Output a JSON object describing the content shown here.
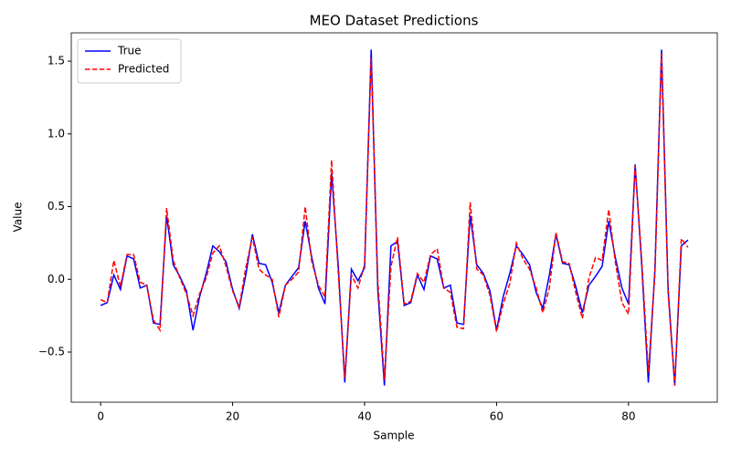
{
  "chart_data": {
    "type": "line",
    "title": "MEO Dataset Predictions",
    "x_label": "Sample",
    "y_label": "Value",
    "x": [
      0,
      1,
      2,
      3,
      4,
      5,
      6,
      7,
      8,
      9,
      10,
      11,
      12,
      13,
      14,
      15,
      16,
      17,
      18,
      19,
      20,
      21,
      22,
      23,
      24,
      25,
      26,
      27,
      28,
      29,
      30,
      31,
      32,
      33,
      34,
      35,
      36,
      37,
      38,
      39,
      40,
      41,
      42,
      43,
      44,
      45,
      46,
      47,
      48,
      49,
      50,
      51,
      52,
      53,
      54,
      55,
      56,
      57,
      58,
      59,
      60,
      61,
      62,
      63,
      64,
      65,
      66,
      67,
      68,
      69,
      70,
      71,
      72,
      73,
      74,
      75,
      76,
      77,
      78,
      79,
      80,
      81,
      82,
      83,
      84,
      85,
      86,
      87,
      88,
      89
    ],
    "series": [
      {
        "name": "True",
        "color": "#0000ff",
        "linestyle": "solid",
        "values": [
          -0.18,
          -0.16,
          0.03,
          -0.07,
          0.16,
          0.14,
          -0.06,
          -0.04,
          -0.3,
          -0.31,
          0.44,
          0.1,
          0.02,
          -0.08,
          -0.35,
          -0.12,
          0.04,
          0.23,
          0.19,
          0.12,
          -0.07,
          -0.2,
          0.03,
          0.31,
          0.11,
          0.1,
          -0.02,
          -0.23,
          -0.04,
          0.02,
          0.08,
          0.4,
          0.15,
          -0.06,
          -0.17,
          0.73,
          0.1,
          -0.71,
          0.07,
          -0.01,
          0.08,
          1.58,
          -0.07,
          -0.73,
          0.23,
          0.26,
          -0.18,
          -0.16,
          0.03,
          -0.07,
          0.16,
          0.14,
          -0.06,
          -0.04,
          -0.3,
          -0.31,
          0.44,
          0.1,
          0.04,
          -0.08,
          -0.35,
          -0.12,
          0.04,
          0.23,
          0.17,
          0.1,
          -0.09,
          -0.2,
          0.03,
          0.31,
          0.11,
          0.1,
          -0.05,
          -0.23,
          -0.04,
          0.02,
          0.09,
          0.4,
          0.15,
          -0.06,
          -0.17,
          0.79,
          0.1,
          -0.71,
          0.07,
          1.58,
          -0.07,
          -0.73,
          0.23,
          0.27
        ]
      },
      {
        "name": "Predicted",
        "color": "#ff0000",
        "linestyle": "dashed",
        "values": [
          -0.14,
          -0.16,
          0.13,
          -0.05,
          0.17,
          0.17,
          -0.02,
          -0.04,
          -0.28,
          -0.35,
          0.49,
          0.13,
          0.01,
          -0.1,
          -0.25,
          -0.1,
          0.01,
          0.18,
          0.23,
          0.09,
          -0.08,
          -0.19,
          0.08,
          0.29,
          0.07,
          0.03,
          0.0,
          -0.26,
          -0.04,
          0.0,
          0.05,
          0.5,
          0.12,
          -0.04,
          -0.12,
          0.82,
          0.05,
          -0.68,
          0.03,
          -0.06,
          0.1,
          1.52,
          -0.01,
          -0.69,
          0.09,
          0.29,
          -0.17,
          -0.15,
          0.04,
          -0.02,
          0.17,
          0.21,
          -0.06,
          -0.09,
          -0.33,
          -0.34,
          0.53,
          0.07,
          0.03,
          -0.11,
          -0.36,
          -0.17,
          -0.03,
          0.25,
          0.14,
          0.07,
          -0.06,
          -0.23,
          -0.06,
          0.32,
          0.12,
          0.11,
          -0.09,
          -0.27,
          0.01,
          0.15,
          0.13,
          0.48,
          0.12,
          -0.16,
          -0.24,
          0.78,
          0.13,
          -0.64,
          0.04,
          1.55,
          -0.1,
          -0.73,
          0.28,
          0.22
        ]
      }
    ],
    "xlim": [
      -4.45,
      93.45
    ],
    "ylim": [
      -0.845,
      1.695
    ],
    "xticks": [
      0,
      20,
      40,
      60,
      80
    ],
    "yticks": [
      {
        "value": -0.5,
        "label": "−0.5"
      },
      {
        "value": 0,
        "label": "0.0"
      },
      {
        "value": 0.5,
        "label": "0.5"
      },
      {
        "value": 1,
        "label": "1.0"
      },
      {
        "value": 1.5,
        "label": "1.5"
      }
    ],
    "legend": "upper left",
    "grid": false
  }
}
